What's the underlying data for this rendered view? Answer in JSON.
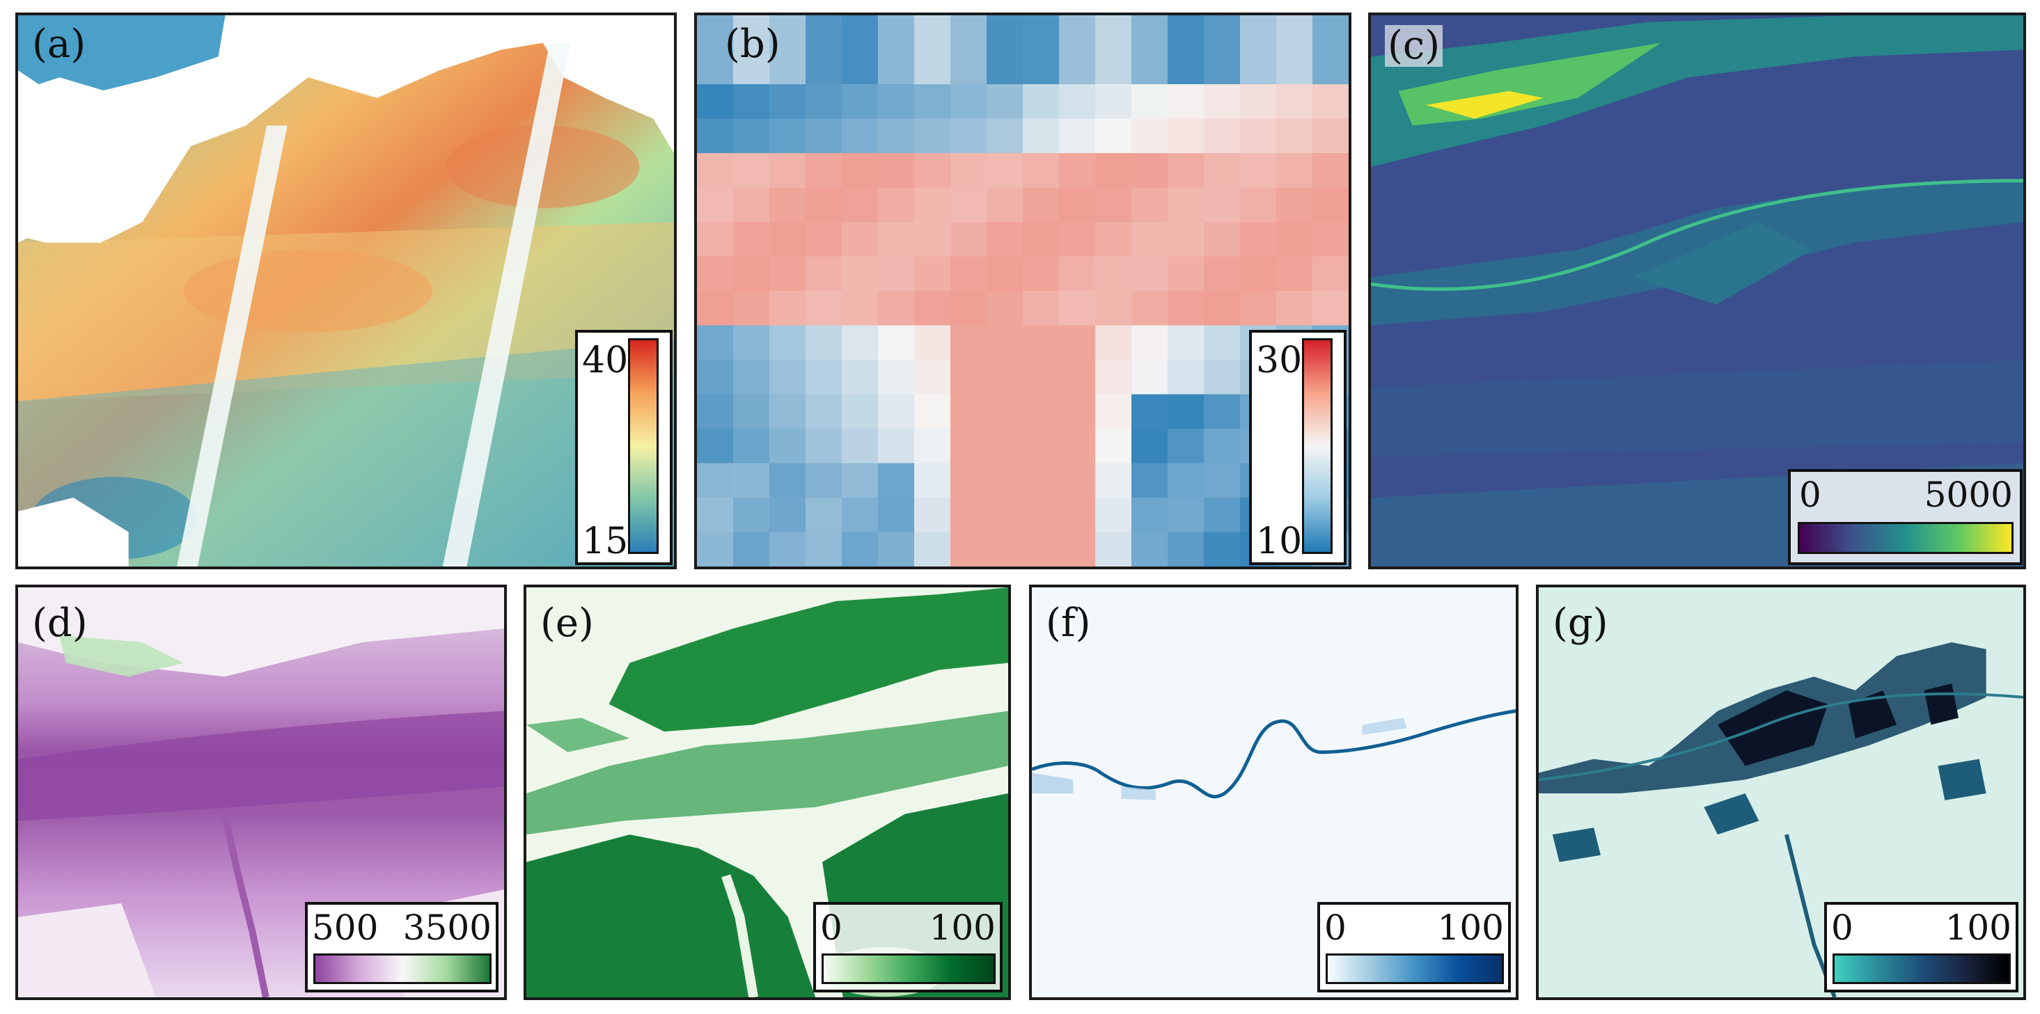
{
  "panels": [
    {
      "label": "(a)",
      "legend": {
        "min": "15",
        "max": "40",
        "colormap": "RdYlGn-BrBG-like",
        "colors": [
          "#2a7fb8",
          "#7fc6a8",
          "#f6f1a4",
          "#f6a35a",
          "#d7261e"
        ]
      }
    },
    {
      "label": "(b)",
      "legend": {
        "min": "10",
        "max": "30",
        "colormap": "RdBu_r",
        "colors": [
          "#1f78b4",
          "#9ccbe4",
          "#f5f5f5",
          "#f7a58a",
          "#d6202a"
        ]
      }
    },
    {
      "label": "(c)",
      "legend": {
        "min": "0",
        "max": "5000",
        "colormap": "viridis",
        "colors": [
          "#440154",
          "#3b528b",
          "#21918c",
          "#5ec962",
          "#fde725"
        ]
      }
    },
    {
      "label": "(d)",
      "legend": {
        "min": "500",
        "max": "3500",
        "colormap": "PRGn",
        "colors": [
          "#8e44a1",
          "#d4a9d9",
          "#f7f7f7",
          "#a6dba0",
          "#1b7837"
        ]
      }
    },
    {
      "label": "(e)",
      "legend": {
        "min": "0",
        "max": "100",
        "colormap": "Greens",
        "colors": [
          "#f7fcf5",
          "#a1d99b",
          "#41ab5d",
          "#006d2c",
          "#00441b"
        ]
      }
    },
    {
      "label": "(f)",
      "legend": {
        "min": "0",
        "max": "100",
        "colormap": "Blues",
        "colors": [
          "#f7fbff",
          "#9ecae1",
          "#4292c6",
          "#08519c",
          "#08306b"
        ]
      }
    },
    {
      "label": "(g)",
      "legend": {
        "min": "0",
        "max": "100",
        "colormap": "mako-like",
        "colors": [
          "#3fd0c0",
          "#2a8a99",
          "#1d4f7a",
          "#1a2440",
          "#000000"
        ]
      }
    }
  ]
}
